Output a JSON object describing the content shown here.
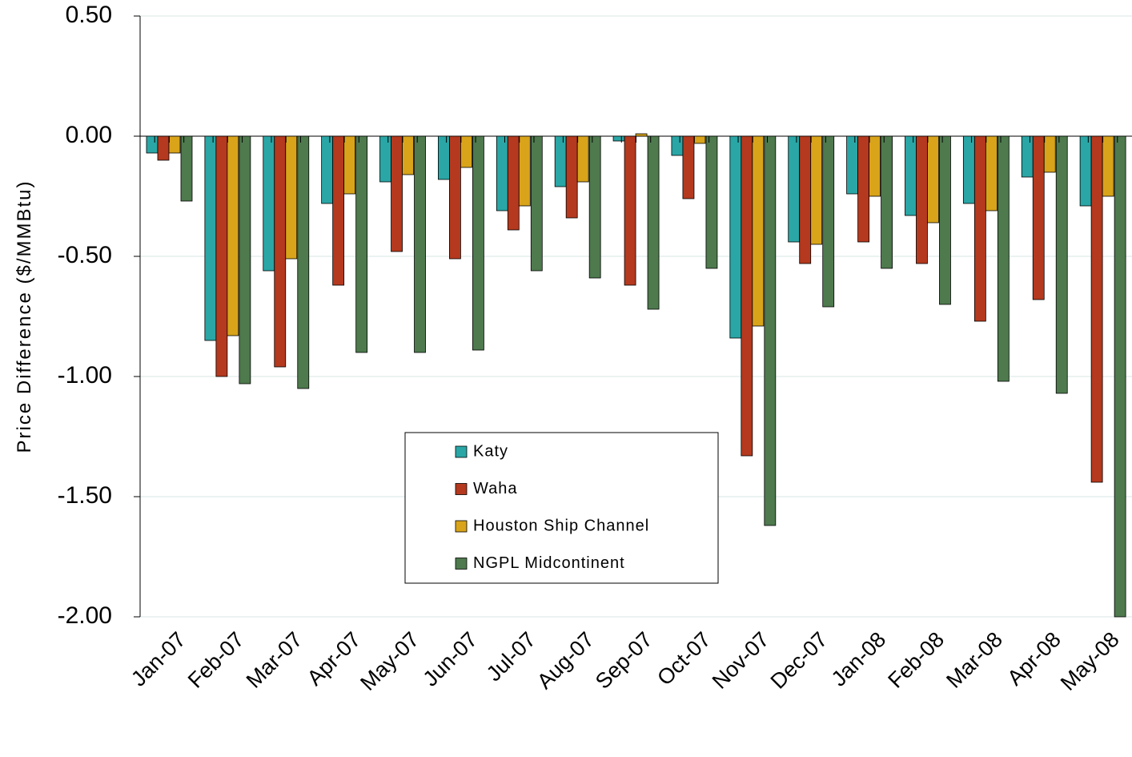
{
  "chart_data": {
    "type": "bar",
    "y_label": "Price Difference  ($/MMBtu)",
    "categories": [
      "Jan-07",
      "Feb-07",
      "Mar-07",
      "Apr-07",
      "May-07",
      "Jun-07",
      "Jul-07",
      "Aug-07",
      "Sep-07",
      "Oct-07",
      "Nov-07",
      "Dec-07",
      "Jan-08",
      "Feb-08",
      "Mar-08",
      "Apr-08",
      "May-08"
    ],
    "series": [
      {
        "name": "Katy",
        "color": "#2aa6a6",
        "values": [
          -0.07,
          -0.85,
          -0.56,
          -0.28,
          -0.19,
          -0.18,
          -0.31,
          -0.21,
          -0.02,
          -0.08,
          -0.84,
          -0.44,
          -0.24,
          -0.33,
          -0.28,
          -0.17,
          -0.29
        ]
      },
      {
        "name": "Waha",
        "color": "#b5391e",
        "values": [
          -0.1,
          -1.0,
          -0.96,
          -0.62,
          -0.48,
          -0.51,
          -0.39,
          -0.34,
          -0.62,
          -0.26,
          -1.33,
          -0.53,
          -0.44,
          -0.53,
          -0.77,
          -0.68,
          -1.44
        ]
      },
      {
        "name": "Houston Ship Channel",
        "color": "#d9a41a",
        "values": [
          -0.07,
          -0.83,
          -0.51,
          -0.24,
          -0.16,
          -0.13,
          -0.29,
          -0.19,
          0.01,
          -0.03,
          -0.79,
          -0.45,
          -0.25,
          -0.36,
          -0.31,
          -0.15,
          -0.25
        ]
      },
      {
        "name": "NGPL Midcontinent",
        "color": "#4e7a4e",
        "values": [
          -0.27,
          -1.03,
          -1.05,
          -0.9,
          -0.9,
          -0.89,
          -0.56,
          -0.59,
          -0.72,
          -0.55,
          -1.62,
          -0.71,
          -0.55,
          -0.7,
          -1.02,
          -1.07,
          -2.0
        ]
      }
    ],
    "ylim": [
      -2.0,
      0.5
    ],
    "yticks": [
      {
        "value": 0.5,
        "label": "0.50"
      },
      {
        "value": 0,
        "label": "0.00"
      },
      {
        "value": -0.5,
        "label": "-0.50"
      },
      {
        "value": -1.0,
        "label": "-1.00"
      },
      {
        "value": -1.5,
        "label": "-1.50"
      },
      {
        "value": -2.0,
        "label": "-2.00"
      }
    ],
    "grid": true
  }
}
